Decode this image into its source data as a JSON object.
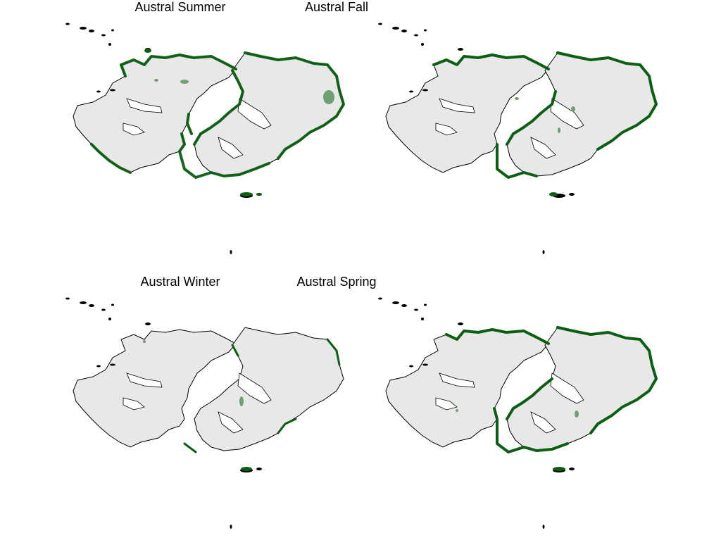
{
  "panels": [
    {
      "title": "Austral Summer",
      "coverage": "high"
    },
    {
      "title": "Austral Fall",
      "coverage": "high"
    },
    {
      "title": "Austral Winter",
      "coverage": "low"
    },
    {
      "title": "Austral Spring",
      "coverage": "high"
    }
  ],
  "colors": {
    "land_fill": "#e8e8e8",
    "coastline": "#000000",
    "occurrence_dark": "#0b5e12",
    "occurrence_light": "#6f9f73"
  }
}
